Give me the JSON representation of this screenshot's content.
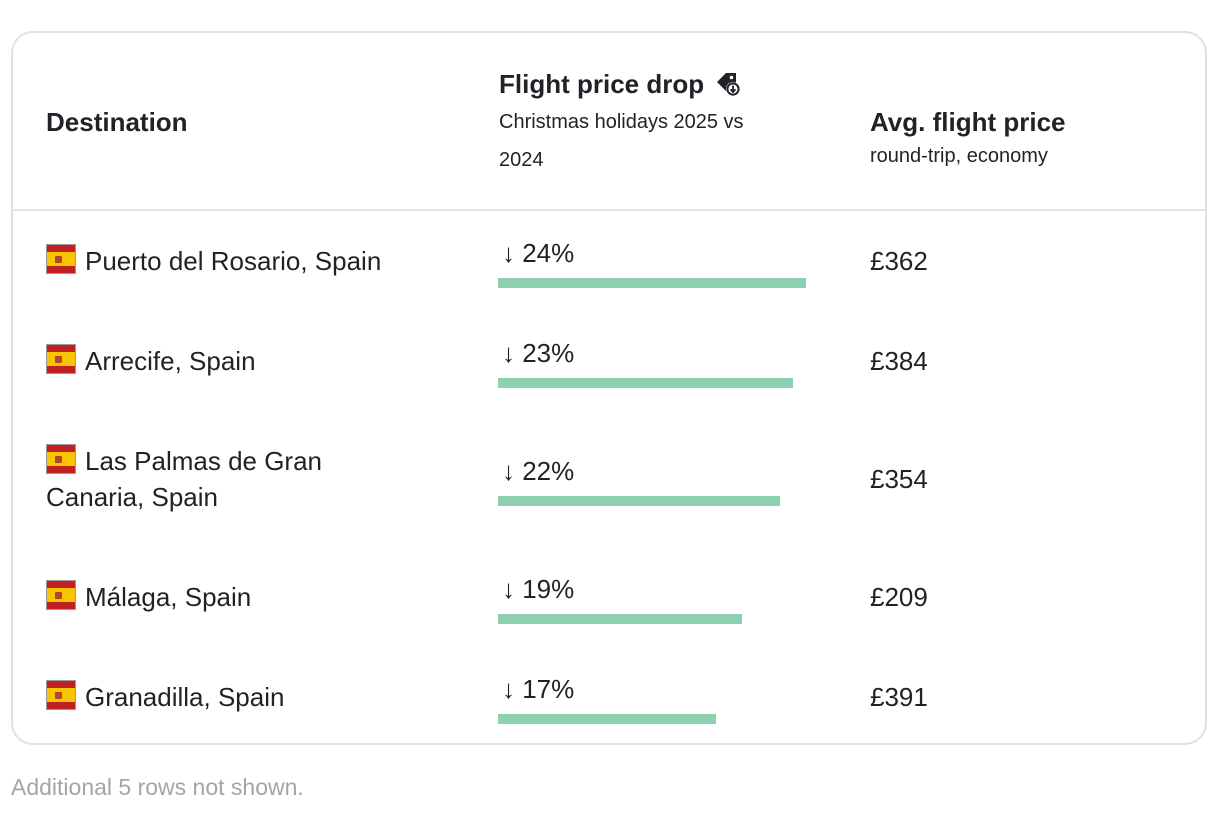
{
  "table": {
    "headers": {
      "destination": "Destination",
      "drop_title": "Flight price drop",
      "drop_subtitle": "Christmas holidays 2025 vs 2024",
      "avg_title": "Avg. flight price",
      "avg_subtitle": "round-trip, economy"
    },
    "rows": [
      {
        "destination": "Puerto del Rosario, Spain",
        "drop": "↓ 24%",
        "drop_value": 24,
        "price": "£362"
      },
      {
        "destination": "Arrecife, Spain",
        "drop": "↓ 23%",
        "drop_value": 23,
        "price": "£384"
      },
      {
        "destination": "Las Palmas de Gran Canaria, Spain",
        "drop": "↓ 22%",
        "drop_value": 22,
        "price": "£354"
      },
      {
        "destination": "Málaga, Spain",
        "drop": "↓ 19%",
        "drop_value": 19,
        "price": "£209"
      },
      {
        "destination": "Granadilla, Spain",
        "drop": "↓ 17%",
        "drop_value": 17,
        "price": "£391"
      }
    ]
  },
  "footnote": "Additional 5 rows not shown.",
  "colors": {
    "bar": "#8ed1b1",
    "border": "#e0e1e3",
    "footnote": "#a3a5a8"
  },
  "icons": {
    "header_tag": "price-tag-down-icon",
    "flag": "spain-flag-icon"
  }
}
